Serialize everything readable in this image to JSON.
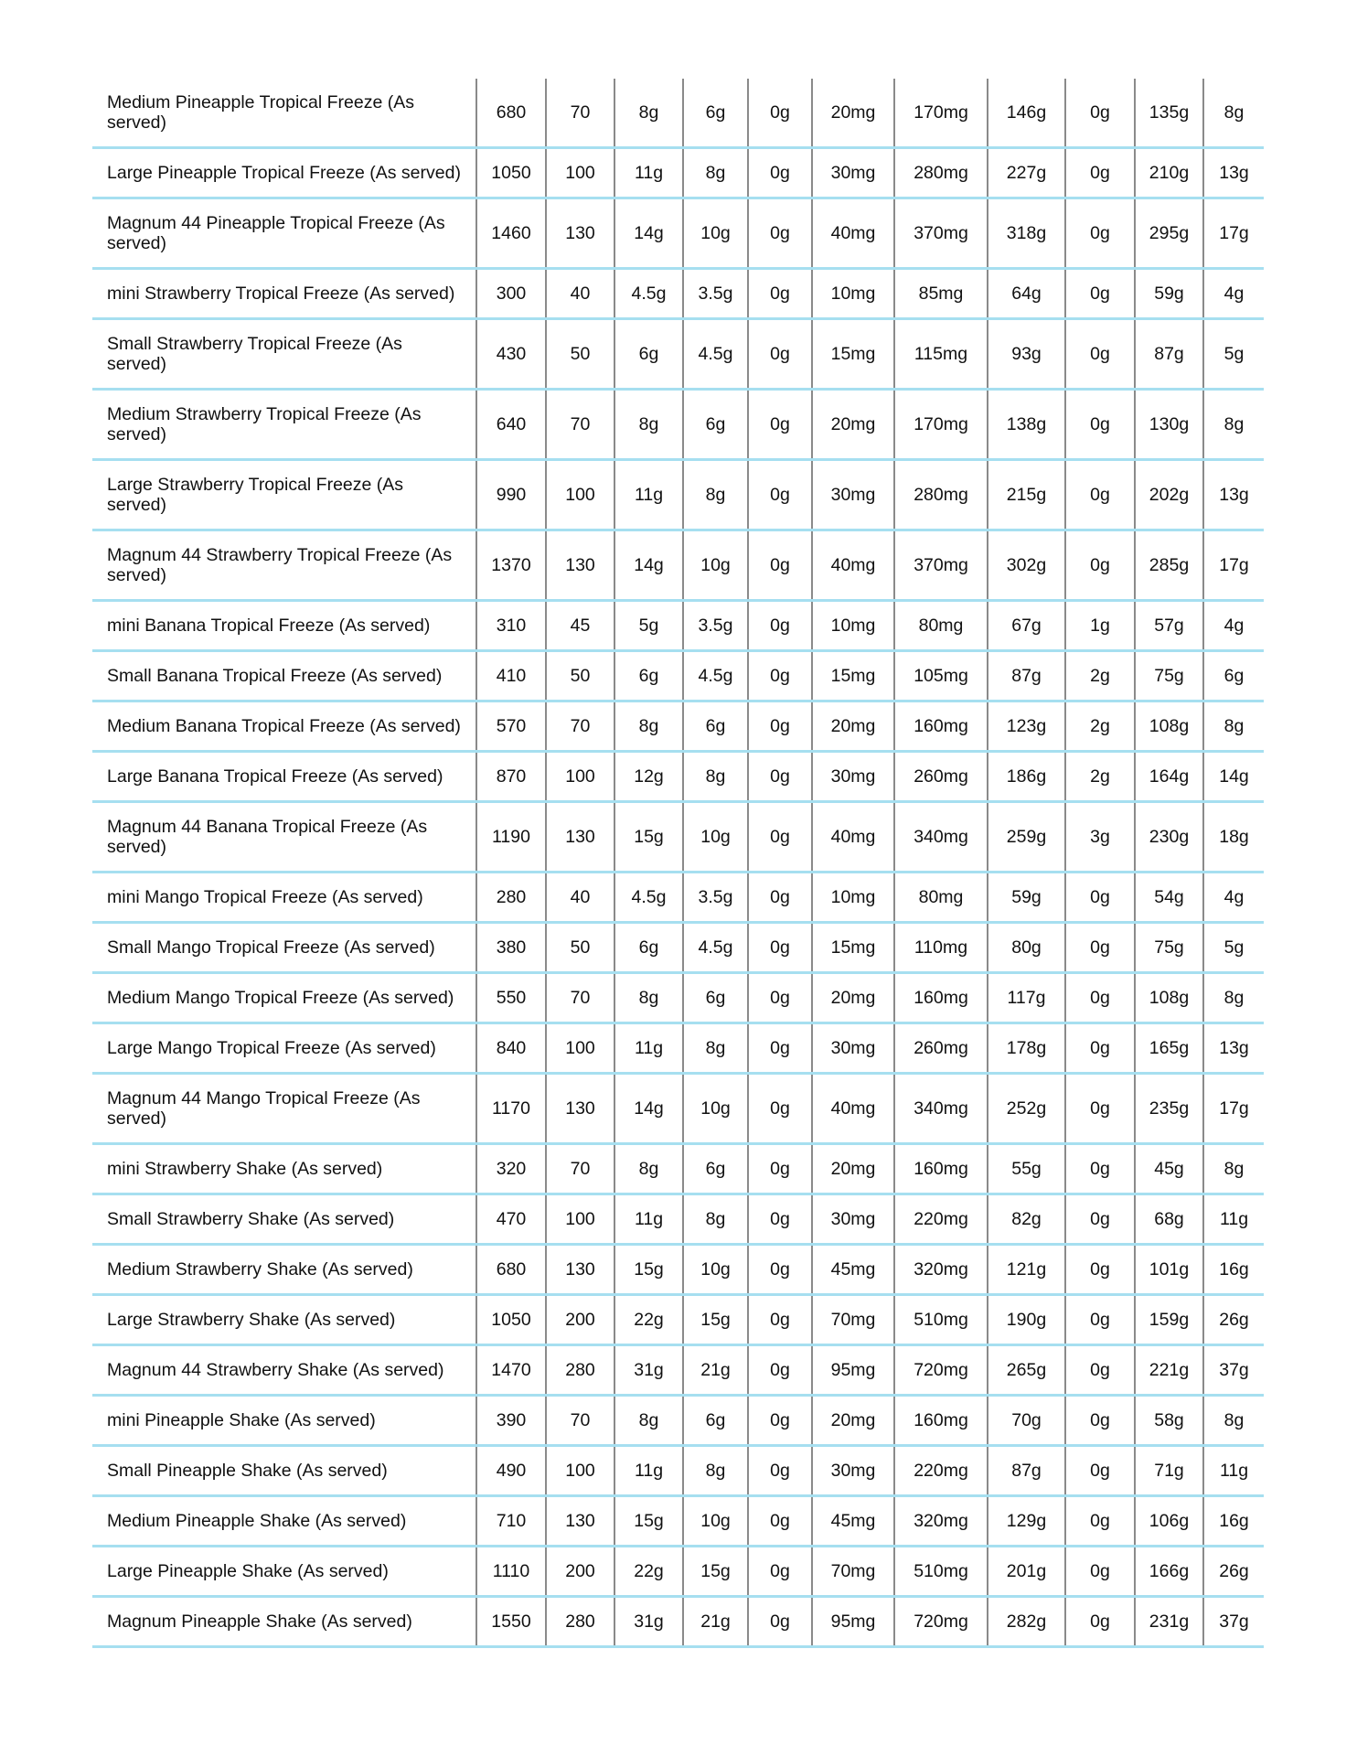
{
  "table": {
    "border_colors": {
      "row_divider": "#a6dff0",
      "column_divider": "#8a8a8a"
    },
    "rows": [
      [
        "Medium Pineapple Tropical Freeze (As served)",
        "680",
        "70",
        "8g",
        "6g",
        "0g",
        "20mg",
        "170mg",
        "146g",
        "0g",
        "135g",
        "8g"
      ],
      [
        "Large Pineapple Tropical Freeze (As served)",
        "1050",
        "100",
        "11g",
        "8g",
        "0g",
        "30mg",
        "280mg",
        "227g",
        "0g",
        "210g",
        "13g"
      ],
      [
        "Magnum 44 Pineapple Tropical Freeze (As served)",
        "1460",
        "130",
        "14g",
        "10g",
        "0g",
        "40mg",
        "370mg",
        "318g",
        "0g",
        "295g",
        "17g"
      ],
      [
        "mini Strawberry Tropical Freeze (As served)",
        "300",
        "40",
        "4.5g",
        "3.5g",
        "0g",
        "10mg",
        "85mg",
        "64g",
        "0g",
        "59g",
        "4g"
      ],
      [
        "Small Strawberry Tropical Freeze (As served)",
        "430",
        "50",
        "6g",
        "4.5g",
        "0g",
        "15mg",
        "115mg",
        "93g",
        "0g",
        "87g",
        "5g"
      ],
      [
        "Medium Strawberry Tropical Freeze (As served)",
        "640",
        "70",
        "8g",
        "6g",
        "0g",
        "20mg",
        "170mg",
        "138g",
        "0g",
        "130g",
        "8g"
      ],
      [
        "Large Strawberry Tropical Freeze (As served)",
        "990",
        "100",
        "11g",
        "8g",
        "0g",
        "30mg",
        "280mg",
        "215g",
        "0g",
        "202g",
        "13g"
      ],
      [
        "Magnum 44 Strawberry Tropical Freeze (As served)",
        "1370",
        "130",
        "14g",
        "10g",
        "0g",
        "40mg",
        "370mg",
        "302g",
        "0g",
        "285g",
        "17g"
      ],
      [
        "mini Banana Tropical Freeze (As served)",
        "310",
        "45",
        "5g",
        "3.5g",
        "0g",
        "10mg",
        "80mg",
        "67g",
        "1g",
        "57g",
        "4g"
      ],
      [
        "Small Banana Tropical Freeze (As served)",
        "410",
        "50",
        "6g",
        "4.5g",
        "0g",
        "15mg",
        "105mg",
        "87g",
        "2g",
        "75g",
        "6g"
      ],
      [
        "Medium Banana Tropical Freeze (As served)",
        "570",
        "70",
        "8g",
        "6g",
        "0g",
        "20mg",
        "160mg",
        "123g",
        "2g",
        "108g",
        "8g"
      ],
      [
        "Large Banana Tropical Freeze (As served)",
        "870",
        "100",
        "12g",
        "8g",
        "0g",
        "30mg",
        "260mg",
        "186g",
        "2g",
        "164g",
        "14g"
      ],
      [
        "Magnum 44 Banana Tropical Freeze (As served)",
        "1190",
        "130",
        "15g",
        "10g",
        "0g",
        "40mg",
        "340mg",
        "259g",
        "3g",
        "230g",
        "18g"
      ],
      [
        "mini Mango Tropical Freeze (As served)",
        "280",
        "40",
        "4.5g",
        "3.5g",
        "0g",
        "10mg",
        "80mg",
        "59g",
        "0g",
        "54g",
        "4g"
      ],
      [
        "Small Mango Tropical Freeze (As served)",
        "380",
        "50",
        "6g",
        "4.5g",
        "0g",
        "15mg",
        "110mg",
        "80g",
        "0g",
        "75g",
        "5g"
      ],
      [
        "Medium Mango Tropical Freeze (As served)",
        "550",
        "70",
        "8g",
        "6g",
        "0g",
        "20mg",
        "160mg",
        "117g",
        "0g",
        "108g",
        "8g"
      ],
      [
        "Large Mango Tropical Freeze (As served)",
        "840",
        "100",
        "11g",
        "8g",
        "0g",
        "30mg",
        "260mg",
        "178g",
        "0g",
        "165g",
        "13g"
      ],
      [
        "Magnum 44 Mango Tropical Freeze (As served)",
        "1170",
        "130",
        "14g",
        "10g",
        "0g",
        "40mg",
        "340mg",
        "252g",
        "0g",
        "235g",
        "17g"
      ],
      [
        "mini Strawberry Shake (As served)",
        "320",
        "70",
        "8g",
        "6g",
        "0g",
        "20mg",
        "160mg",
        "55g",
        "0g",
        "45g",
        "8g"
      ],
      [
        "Small Strawberry Shake (As served)",
        "470",
        "100",
        "11g",
        "8g",
        "0g",
        "30mg",
        "220mg",
        "82g",
        "0g",
        "68g",
        "11g"
      ],
      [
        "Medium Strawberry Shake (As served)",
        "680",
        "130",
        "15g",
        "10g",
        "0g",
        "45mg",
        "320mg",
        "121g",
        "0g",
        "101g",
        "16g"
      ],
      [
        "Large Strawberry Shake (As served)",
        "1050",
        "200",
        "22g",
        "15g",
        "0g",
        "70mg",
        "510mg",
        "190g",
        "0g",
        "159g",
        "26g"
      ],
      [
        "Magnum 44 Strawberry Shake (As served)",
        "1470",
        "280",
        "31g",
        "21g",
        "0g",
        "95mg",
        "720mg",
        "265g",
        "0g",
        "221g",
        "37g"
      ],
      [
        "mini Pineapple Shake (As served)",
        "390",
        "70",
        "8g",
        "6g",
        "0g",
        "20mg",
        "160mg",
        "70g",
        "0g",
        "58g",
        "8g"
      ],
      [
        "Small Pineapple Shake (As served)",
        "490",
        "100",
        "11g",
        "8g",
        "0g",
        "30mg",
        "220mg",
        "87g",
        "0g",
        "71g",
        "11g"
      ],
      [
        "Medium Pineapple Shake (As served)",
        "710",
        "130",
        "15g",
        "10g",
        "0g",
        "45mg",
        "320mg",
        "129g",
        "0g",
        "106g",
        "16g"
      ],
      [
        "Large Pineapple Shake (As served)",
        "1110",
        "200",
        "22g",
        "15g",
        "0g",
        "70mg",
        "510mg",
        "201g",
        "0g",
        "166g",
        "26g"
      ],
      [
        "Magnum Pineapple Shake (As served)",
        "1550",
        "280",
        "31g",
        "21g",
        "0g",
        "95mg",
        "720mg",
        "282g",
        "0g",
        "231g",
        "37g"
      ]
    ]
  }
}
